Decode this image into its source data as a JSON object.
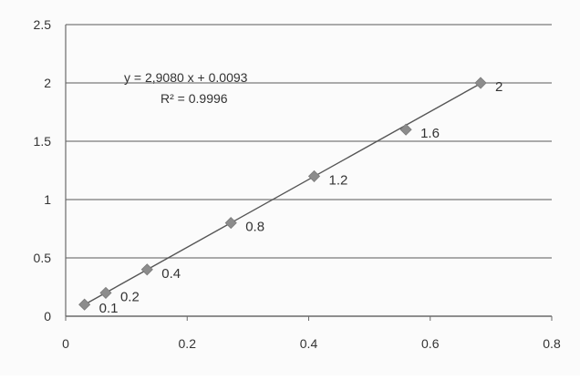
{
  "chart_data": {
    "type": "scatter",
    "title": "",
    "xlabel": "",
    "ylabel": "",
    "xlim": [
      0,
      0.8
    ],
    "ylim": [
      0,
      2.5
    ],
    "x_ticks": [
      "0",
      "0.2",
      "0.4",
      "0.6",
      "0.8"
    ],
    "y_ticks": [
      "0",
      "0.5",
      "1",
      "1.5",
      "2",
      "2.5"
    ],
    "grid": "horizontal",
    "legend": "none",
    "series": [
      {
        "marker": "diamond",
        "color": "#8c8c8c",
        "points": [
          {
            "x": 0.031,
            "y": 0.1,
            "label": "0.1"
          },
          {
            "x": 0.066,
            "y": 0.2,
            "label": "0.2"
          },
          {
            "x": 0.134,
            "y": 0.4,
            "label": "0.4"
          },
          {
            "x": 0.272,
            "y": 0.8,
            "label": "0.8"
          },
          {
            "x": 0.409,
            "y": 1.2,
            "label": "1.2"
          },
          {
            "x": 0.56,
            "y": 1.6,
            "label": "1.6"
          },
          {
            "x": 0.683,
            "y": 2.0,
            "label": "2"
          }
        ]
      }
    ],
    "trendline": {
      "type": "linear",
      "slope": 2.908,
      "intercept": 0.0093,
      "x_range": [
        0.031,
        0.683
      ],
      "color": "#555555",
      "equation": "y = 2,9080 x + 0.0093",
      "r_squared": "R² = 0.9996"
    }
  }
}
